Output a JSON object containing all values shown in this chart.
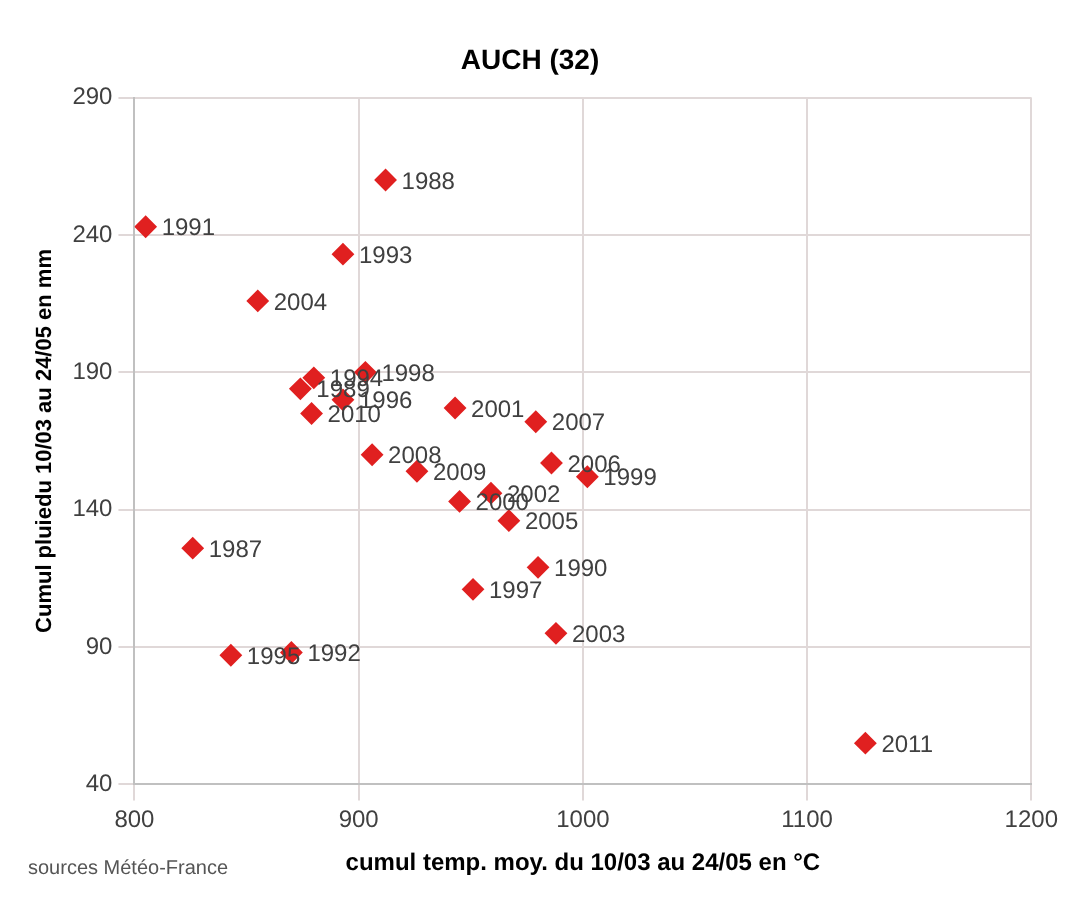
{
  "chart_data": {
    "type": "scatter",
    "title": "AUCH (32)",
    "xlabel": "cumul temp. moy. du 10/03 au 24/05 en °C",
    "ylabel": "Cumul pluiedu 10/03 au 24/05 en mm",
    "x": [
      912,
      805,
      893,
      855,
      874,
      880,
      903,
      893,
      879,
      943,
      979,
      906,
      986,
      1002,
      926,
      945,
      959,
      967,
      980,
      951,
      988,
      826,
      843,
      870,
      1126
    ],
    "series": [
      {
        "color": "#e02020",
        "values": [
          260,
          243,
          233,
          216,
          184,
          188,
          190,
          180,
          175,
          177,
          172,
          160,
          157,
          152,
          154,
          143,
          146,
          136,
          119,
          111,
          95,
          126,
          87,
          88,
          55
        ]
      }
    ],
    "xlim": [
      800,
      1200
    ],
    "xticks": [
      800,
      900,
      1000,
      1100,
      1200
    ],
    "ylim": [
      40,
      290
    ],
    "yticks": [
      40,
      90,
      140,
      190,
      240,
      290
    ],
    "grid": true,
    "legend": false,
    "marker": "diamond",
    "annotations": [
      "sources Météo-France",
      {
        "text": "1988",
        "x": 912,
        "y": 260
      },
      {
        "text": "1991",
        "x": 805,
        "y": 243
      },
      {
        "text": "1993",
        "x": 893,
        "y": 233
      },
      {
        "text": "2004",
        "x": 855,
        "y": 216
      },
      {
        "text": "1989",
        "x": 874,
        "y": 184
      },
      {
        "text": "1994",
        "x": 880,
        "y": 188
      },
      {
        "text": "1998",
        "x": 903,
        "y": 190
      },
      {
        "text": "1996",
        "x": 893,
        "y": 180
      },
      {
        "text": "2010",
        "x": 879,
        "y": 175
      },
      {
        "text": "2001",
        "x": 943,
        "y": 177
      },
      {
        "text": "2007",
        "x": 979,
        "y": 172
      },
      {
        "text": "2008",
        "x": 906,
        "y": 160
      },
      {
        "text": "2006",
        "x": 986,
        "y": 157
      },
      {
        "text": "1999",
        "x": 1002,
        "y": 152
      },
      {
        "text": "2009",
        "x": 926,
        "y": 154
      },
      {
        "text": "2000",
        "x": 945,
        "y": 143
      },
      {
        "text": "2002",
        "x": 959,
        "y": 146
      },
      {
        "text": "2005",
        "x": 967,
        "y": 136
      },
      {
        "text": "1990",
        "x": 980,
        "y": 119
      },
      {
        "text": "1997",
        "x": 951,
        "y": 111
      },
      {
        "text": "2003",
        "x": 988,
        "y": 95
      },
      {
        "text": "1987",
        "x": 826,
        "y": 126
      },
      {
        "text": "1995",
        "x": 843,
        "y": 87
      },
      {
        "text": "1992",
        "x": 870,
        "y": 88
      },
      {
        "text": "2011",
        "x": 1126,
        "y": 55
      }
    ]
  }
}
